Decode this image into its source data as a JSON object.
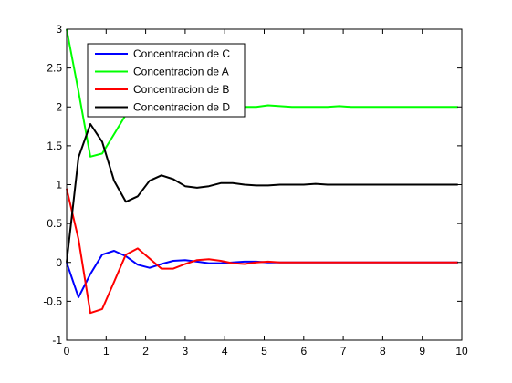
{
  "chart_data": {
    "type": "line",
    "title": "",
    "xlabel": "",
    "ylabel": "",
    "xlim": [
      0,
      10
    ],
    "ylim": [
      -1,
      3
    ],
    "xticks": [
      0,
      1,
      2,
      3,
      4,
      5,
      6,
      7,
      8,
      9,
      10
    ],
    "yticks": [
      -1,
      -0.5,
      0,
      0.5,
      1,
      1.5,
      2,
      2.5,
      3
    ],
    "xtick_labels": [
      "0",
      "1",
      "2",
      "3",
      "4",
      "5",
      "6",
      "7",
      "8",
      "9",
      "10"
    ],
    "ytick_labels": [
      "-1",
      "-0.5",
      "0",
      "0.5",
      "1",
      "1.5",
      "2",
      "2.5",
      "3"
    ],
    "grid": false,
    "legend_position": "top-left",
    "x": [
      0,
      0.3,
      0.6,
      0.9,
      1.2,
      1.5,
      1.8,
      2.1,
      2.4,
      2.7,
      3.0,
      3.3,
      3.6,
      3.9,
      4.2,
      4.5,
      4.8,
      5.1,
      5.4,
      5.7,
      6.0,
      6.3,
      6.6,
      6.9,
      7.2,
      7.5,
      7.8,
      8.1,
      8.4,
      8.7,
      9.0,
      9.3,
      9.6,
      9.9
    ],
    "series": [
      {
        "name": "Concentracion de C",
        "color": "#0000ff",
        "values": [
          0,
          -0.45,
          -0.15,
          0.1,
          0.15,
          0.08,
          -0.03,
          -0.07,
          -0.02,
          0.02,
          0.03,
          0.01,
          -0.01,
          -0.01,
          0.0,
          0.01,
          0.01,
          0.0,
          0.0,
          0.0,
          0.0,
          0.0,
          0.0,
          0.0,
          0.0,
          0.0,
          0.0,
          0.0,
          0.0,
          0.0,
          0.0,
          0.0,
          0.0,
          0.0
        ]
      },
      {
        "name": "Concentracion de A",
        "color": "#00ff00",
        "values": [
          3.0,
          2.2,
          1.36,
          1.4,
          1.65,
          1.9,
          2.05,
          2.1,
          2.08,
          2.02,
          1.97,
          1.96,
          1.98,
          2.0,
          2.01,
          2.0,
          2.0,
          2.02,
          2.01,
          2.0,
          2.0,
          2.0,
          2.0,
          2.01,
          2.0,
          2.0,
          2.0,
          2.0,
          2.0,
          2.0,
          2.0,
          2.0,
          2.0,
          2.0
        ]
      },
      {
        "name": "Concentracion de B",
        "color": "#ff0000",
        "values": [
          0.95,
          0.3,
          -0.65,
          -0.6,
          -0.25,
          0.1,
          0.18,
          0.05,
          -0.08,
          -0.08,
          -0.02,
          0.03,
          0.04,
          0.02,
          -0.01,
          -0.02,
          0.0,
          0.01,
          0.0,
          0.0,
          0.0,
          0.0,
          0.0,
          0.0,
          0.0,
          0.0,
          0.0,
          0.0,
          0.0,
          0.0,
          0.0,
          0.0,
          0.0,
          0.0
        ]
      },
      {
        "name": "Concentracion de D",
        "color": "#000000",
        "values": [
          0.0,
          1.35,
          1.78,
          1.55,
          1.05,
          0.78,
          0.85,
          1.05,
          1.12,
          1.07,
          0.98,
          0.96,
          0.98,
          1.02,
          1.02,
          1.0,
          0.99,
          0.99,
          1.0,
          1.0,
          1.0,
          1.01,
          1.0,
          1.0,
          1.0,
          1.0,
          1.0,
          1.0,
          1.0,
          1.0,
          1.0,
          1.0,
          1.0,
          1.0
        ]
      }
    ],
    "legend_order": [
      0,
      1,
      2,
      3
    ]
  }
}
